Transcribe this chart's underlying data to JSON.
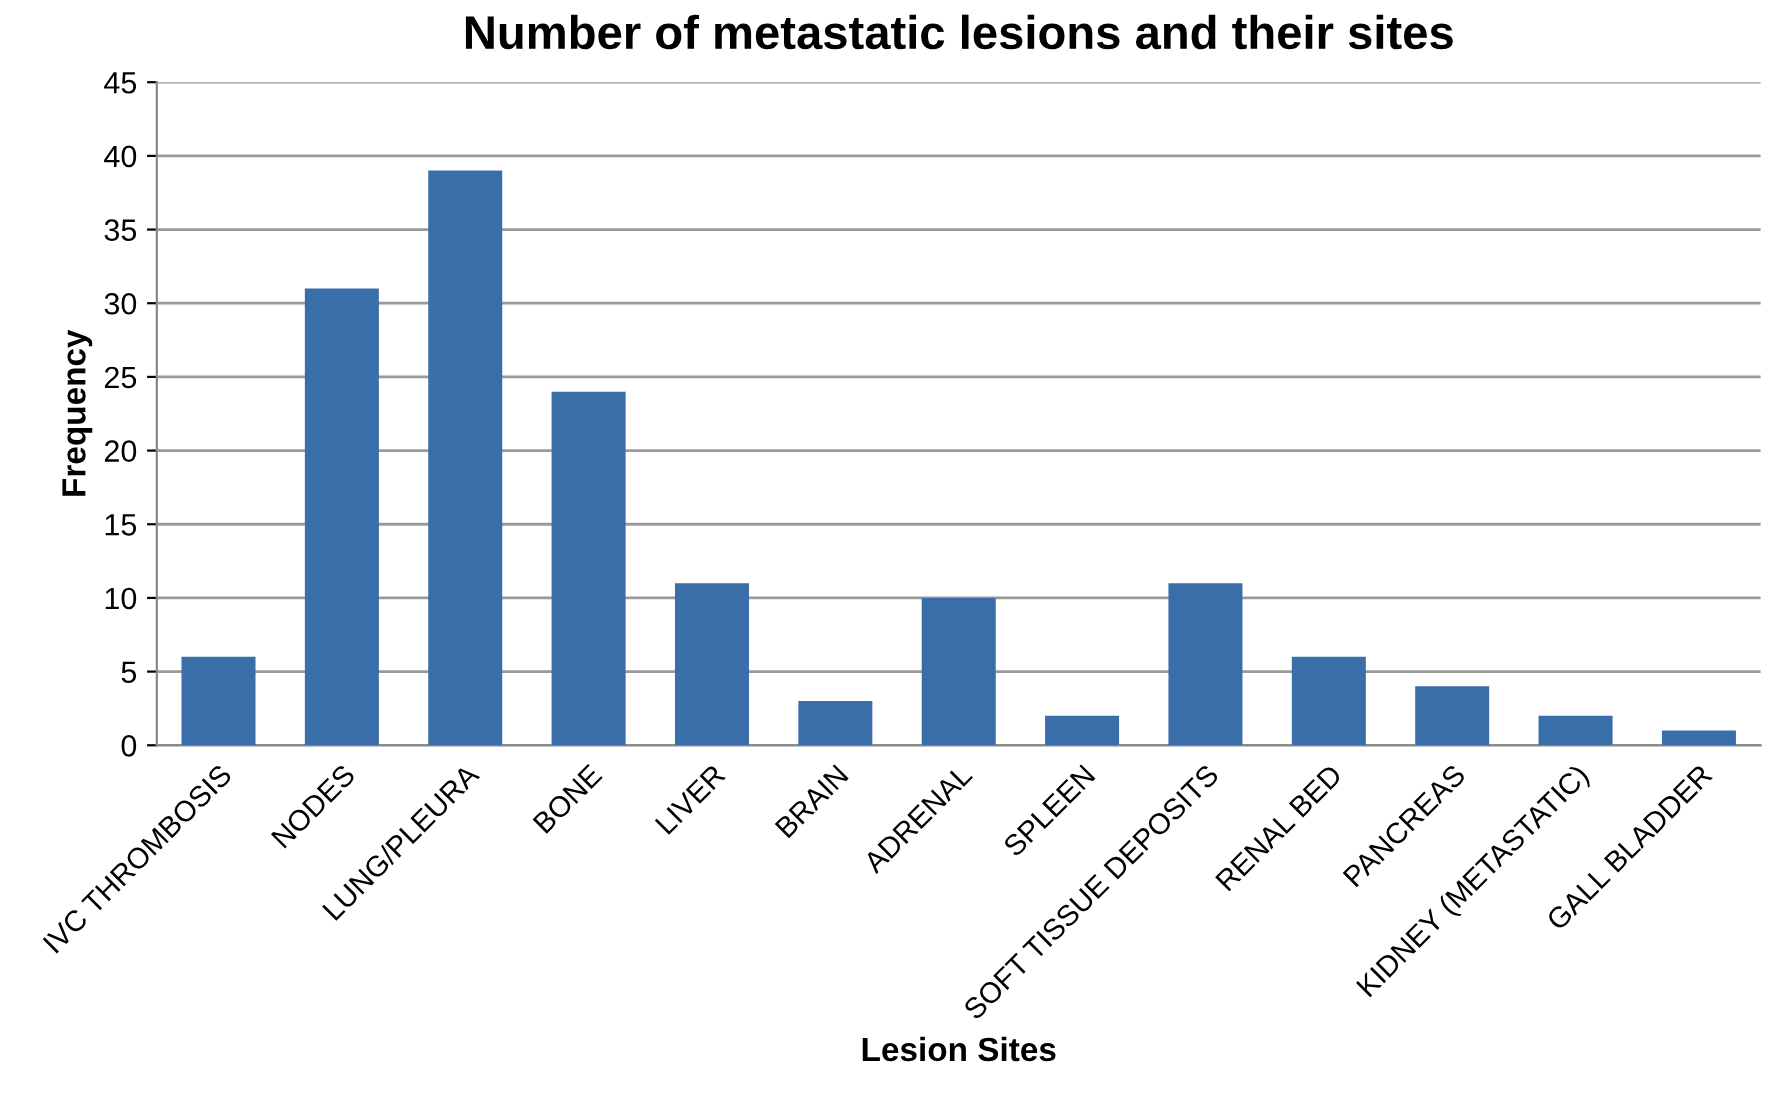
{
  "chart_data": {
    "type": "bar",
    "title": "Number of metastatic lesions and their sites",
    "xlabel": "Lesion Sites",
    "ylabel": "Frequency",
    "categories": [
      "IVC THROMBOSIS",
      "NODES",
      "LUNG/PLEURA",
      "BONE",
      "LIVER",
      "BRAIN",
      "ADRENAL",
      "SPLEEN",
      "SOFT TISSUE DEPOSITS",
      "RENAL BED",
      "PANCREAS",
      "KIDNEY (METASTATIC)",
      "GALL BLADDER"
    ],
    "values": [
      6,
      31,
      39,
      24,
      11,
      3,
      10,
      2,
      11,
      6,
      4,
      2,
      1
    ],
    "color": "#3a6ea8",
    "ylim": [
      0,
      45
    ],
    "yticks": [
      0,
      5,
      10,
      15,
      20,
      25,
      30,
      35,
      40,
      45
    ],
    "grid": "y",
    "legend": false
  }
}
